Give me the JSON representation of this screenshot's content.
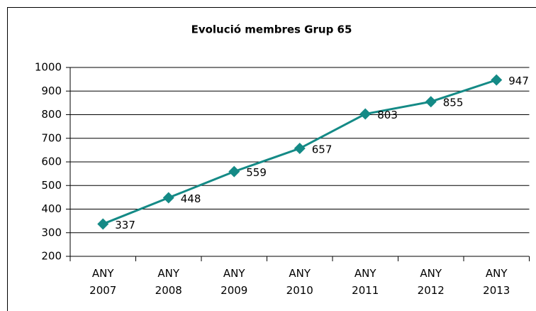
{
  "chart_data": {
    "type": "line",
    "title": "Evolució membres Grup 65",
    "categories": [
      "ANY 2007",
      "ANY 2008",
      "ANY 2009",
      "ANY 2010",
      "ANY 2011",
      "ANY 2012",
      "ANY 2013"
    ],
    "values": [
      337,
      448,
      559,
      657,
      803,
      855,
      947
    ],
    "color": "#148a86",
    "ylim": [
      200,
      1000
    ],
    "yticks": [
      200,
      300,
      400,
      500,
      600,
      700,
      800,
      900,
      1000
    ],
    "grid": true
  }
}
